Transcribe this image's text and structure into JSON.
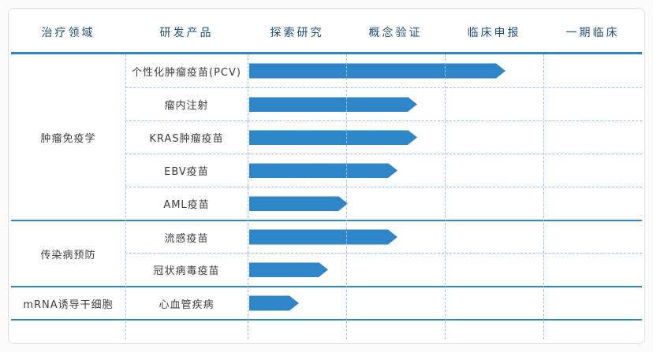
{
  "chart_data": {
    "type": "bar",
    "variant": "pipeline",
    "orientation": "horizontal",
    "title": "",
    "columns": [
      "治疗领域",
      "研发产品",
      "探索研究",
      "概念验证",
      "临床申报",
      "一期临床"
    ],
    "stages": [
      "探索研究",
      "概念验证",
      "临床申报",
      "一期临床"
    ],
    "progress_unit": "stage columns completed from start of 探索研究 (1.0 = end of 探索研究 column)",
    "groups": [
      {
        "area": "肿瘤免疫学",
        "products": [
          {
            "name": "个性化肿瘤疫苗(PCV)",
            "progress": 2.6
          },
          {
            "name": "瘤内注射",
            "progress": 1.7
          },
          {
            "name": "KRAS肿瘤疫苗",
            "progress": 1.7
          },
          {
            "name": "EBV疫苗",
            "progress": 1.5
          },
          {
            "name": "AML疫苗",
            "progress": 1.0
          }
        ]
      },
      {
        "area": "传染病预防",
        "products": [
          {
            "name": "流感疫苗",
            "progress": 1.5
          },
          {
            "name": "冠状病毒疫苗",
            "progress": 0.8
          }
        ]
      },
      {
        "area": "mRNA诱导干细胞",
        "products": [
          {
            "name": "心血管疾病",
            "progress": 0.5
          }
        ]
      }
    ],
    "colors": {
      "arrow": "#2e86c8",
      "solid_line": "#2e86c8",
      "dashed_line": "#9cc3e5",
      "header_text": "#1d4e76",
      "body_text": "#3d3d3d"
    },
    "legend": "none",
    "grid": "dashed column separators, dashed row separators within groups, solid separators between groups"
  }
}
